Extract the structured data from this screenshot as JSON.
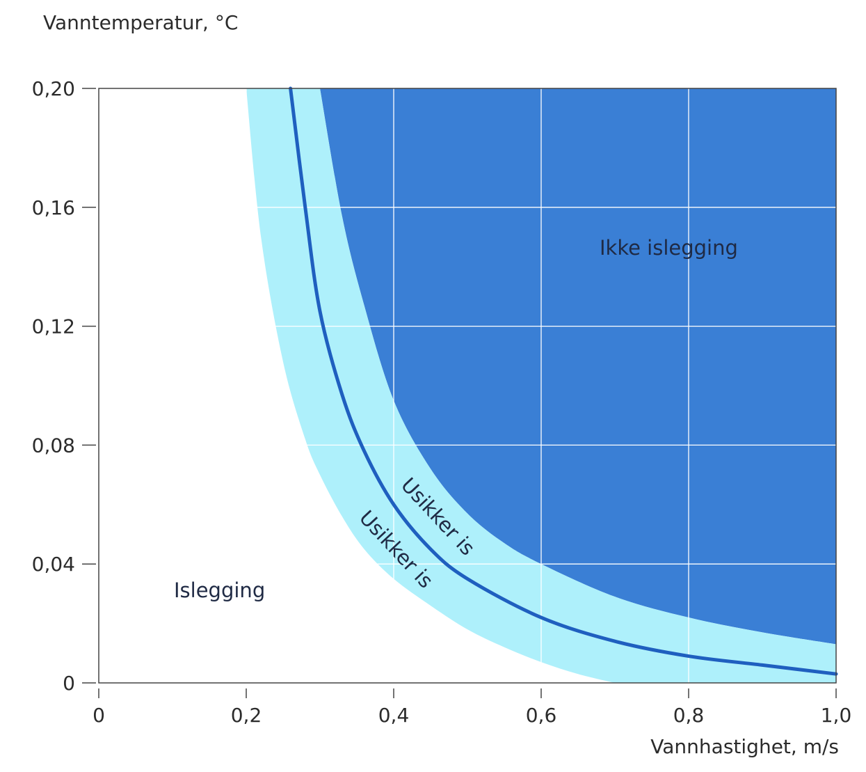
{
  "chart_data": {
    "type": "area",
    "title": "",
    "ylabel": "Vanntemperatur, °C",
    "xlabel": "Vannhastighet, m/s",
    "xlim": [
      0,
      1.0
    ],
    "ylim": [
      0,
      0.2
    ],
    "x_ticks": [
      0,
      0.2,
      0.4,
      0.6,
      0.8,
      1.0
    ],
    "x_tick_labels": [
      "0",
      "0,2",
      "0,4",
      "0,6",
      "0,8",
      "1,0"
    ],
    "y_ticks": [
      0,
      0.04,
      0.08,
      0.12,
      0.16,
      0.2
    ],
    "y_tick_labels": [
      "0",
      "0,04",
      "0,08",
      "0,12",
      "0,16",
      "0,20"
    ],
    "grid": true,
    "series": [
      {
        "role": "boundary",
        "color": "#1f5fbf",
        "x": [
          0.26,
          0.28,
          0.3,
          0.33,
          0.36,
          0.4,
          0.45,
          0.5,
          0.6,
          0.7,
          0.8,
          0.9,
          1.0
        ],
        "y": [
          0.2,
          0.16,
          0.125,
          0.097,
          0.078,
          0.06,
          0.045,
          0.035,
          0.022,
          0.014,
          0.009,
          0.006,
          0.003
        ]
      },
      {
        "role": "uncertain_band_upper",
        "color": "#aef0fb",
        "x": [
          0.3,
          0.33,
          0.36,
          0.4,
          0.45,
          0.5,
          0.55,
          0.6,
          0.7,
          0.8,
          0.9,
          1.0
        ],
        "y": [
          0.2,
          0.157,
          0.127,
          0.095,
          0.072,
          0.057,
          0.047,
          0.04,
          0.029,
          0.022,
          0.017,
          0.013
        ]
      },
      {
        "role": "uncertain_band_lower",
        "color": "#aef0fb",
        "x": [
          0.2,
          0.22,
          0.25,
          0.28,
          0.3,
          0.33,
          0.36,
          0.4,
          0.45,
          0.5,
          0.55,
          0.6,
          0.65,
          0.7
        ],
        "y": [
          0.2,
          0.15,
          0.108,
          0.082,
          0.07,
          0.056,
          0.045,
          0.035,
          0.026,
          0.018,
          0.012,
          0.007,
          0.003,
          0.0
        ]
      }
    ],
    "no_ice_color": "#3a7fd5",
    "annotations": {
      "ice": "Islegging",
      "no_ice": "Ikke islegging",
      "uncertain_upper": "Usikker is",
      "uncertain_lower": "Usikker is"
    }
  }
}
